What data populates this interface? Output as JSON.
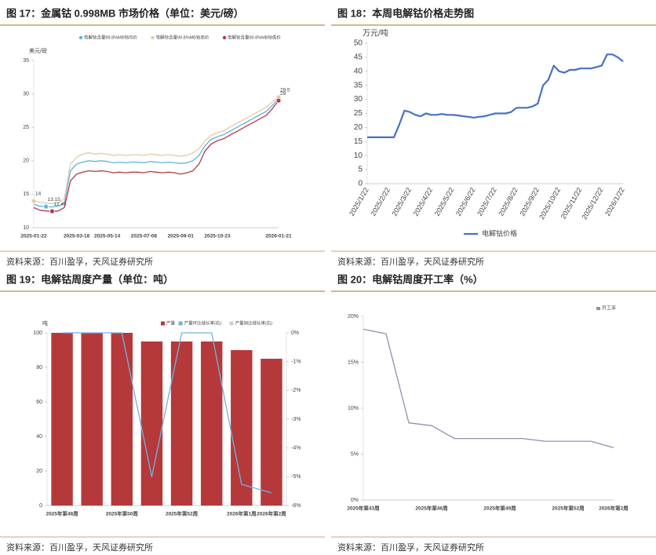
{
  "chart_data": [
    {
      "type": "line",
      "title": "图 17：金属钴 0.998MB 市场价格（单位：美元/磅）",
      "source": "资料来源：百川盈孚，天风证券研究所",
      "y_label": "美元/磅",
      "legend": "top",
      "categories": [
        "2025-01-22",
        null,
        null,
        null,
        null,
        null,
        null,
        "2025-03-18",
        null,
        null,
        null,
        null,
        "2025-05-14",
        null,
        null,
        null,
        null,
        null,
        "2025-07-08",
        null,
        null,
        null,
        null,
        null,
        "2025-09-01",
        null,
        null,
        null,
        null,
        null,
        "2025-10-23",
        null,
        null,
        null,
        null,
        null,
        null,
        null,
        null,
        null,
        "2026-01-21"
      ],
      "ylim": [
        10,
        35
      ],
      "yticks": [
        10,
        15,
        20,
        25,
        30,
        35
      ],
      "grid": false,
      "series": [
        {
          "name": "电解钴含量99.8%MB钴均价",
          "color": "#5fb3e3",
          "values": [
            13.5,
            13.2,
            13.15,
            13.1,
            13.2,
            13.7,
            18.5,
            19.5,
            19.8,
            20.0,
            19.9,
            20.0,
            19.9,
            19.7,
            19.8,
            19.7,
            19.8,
            19.8,
            19.7,
            19.9,
            19.8,
            19.7,
            19.8,
            19.7,
            19.6,
            19.7,
            20.0,
            20.8,
            22.3,
            23.2,
            23.6,
            23.9,
            24.4,
            24.9,
            25.4,
            25.9,
            26.4,
            26.9,
            27.4,
            28.3,
            29.3
          ],
          "value_labels": [
            null,
            null,
            "13.15",
            null,
            null,
            null,
            null,
            null,
            null,
            null,
            null,
            null,
            null,
            null,
            null,
            null,
            null,
            null,
            null,
            null,
            null,
            null,
            null,
            null,
            null,
            null,
            null,
            null,
            null,
            null,
            null,
            null,
            null,
            null,
            null,
            null,
            null,
            null,
            null,
            null,
            null
          ]
        },
        {
          "name": "电解钴含量99.8%MB钴高价",
          "color": "#e6c9a2",
          "values": [
            14.0,
            13.8,
            13.7,
            13.6,
            13.7,
            14.3,
            19.5,
            20.5,
            21.0,
            21.2,
            21.0,
            21.1,
            21.0,
            20.8,
            20.9,
            20.8,
            20.9,
            20.9,
            20.8,
            21.0,
            20.9,
            20.8,
            20.9,
            20.8,
            20.7,
            20.8,
            21.2,
            21.8,
            23.0,
            23.8,
            24.2,
            24.5,
            25.0,
            25.5,
            26.0,
            26.5,
            27.0,
            27.5,
            28.0,
            28.8,
            29.5
          ],
          "value_labels": [
            "14",
            null,
            null,
            null,
            null,
            null,
            null,
            null,
            null,
            null,
            null,
            null,
            null,
            null,
            null,
            null,
            null,
            null,
            null,
            null,
            null,
            null,
            null,
            null,
            null,
            null,
            null,
            null,
            null,
            null,
            null,
            null,
            null,
            null,
            null,
            null,
            null,
            null,
            null,
            null,
            "29.5"
          ]
        },
        {
          "name": "电解钴含量99.8%MB钴低价",
          "color": "#b23a48",
          "values": [
            13.0,
            12.6,
            12.5,
            12.45,
            12.5,
            13.0,
            17.0,
            18.0,
            18.3,
            18.5,
            18.4,
            18.5,
            18.4,
            18.2,
            18.3,
            18.2,
            18.3,
            18.3,
            18.2,
            18.4,
            18.3,
            18.2,
            18.3,
            18.2,
            18.0,
            18.2,
            18.5,
            19.5,
            21.5,
            22.5,
            23.0,
            23.3,
            23.8,
            24.3,
            24.8,
            25.3,
            25.8,
            26.3,
            26.8,
            27.8,
            29.0
          ],
          "value_labels": [
            null,
            null,
            null,
            "12.45",
            null,
            null,
            null,
            null,
            null,
            null,
            null,
            null,
            null,
            null,
            null,
            null,
            null,
            null,
            null,
            null,
            null,
            null,
            null,
            null,
            null,
            null,
            null,
            null,
            null,
            null,
            null,
            null,
            null,
            null,
            null,
            null,
            null,
            null,
            null,
            null,
            "29"
          ]
        }
      ]
    },
    {
      "type": "line",
      "title": "图 18：本周电解钴价格走势图",
      "source": "资料来源：百川盈孚，天风证券研究所",
      "y_label": "万元/吨",
      "legend": "bottom",
      "categories": [
        "2025/1/22",
        null,
        null,
        null,
        "2025/2/22",
        null,
        null,
        null,
        "2025/3/22",
        null,
        null,
        null,
        "2025/4/22",
        null,
        null,
        null,
        "2025/5/22",
        null,
        null,
        null,
        "2025/6/22",
        null,
        null,
        null,
        "2025/7/22",
        null,
        null,
        null,
        "2025/8/22",
        null,
        null,
        null,
        "2025/9/22",
        null,
        null,
        null,
        "2025/10/22",
        null,
        null,
        null,
        "2025/11/22",
        null,
        null,
        null,
        "2025/12/22",
        null,
        null,
        null,
        "2026/1/22"
      ],
      "ylim": [
        0,
        50
      ],
      "yticks": [
        0,
        5,
        10,
        15,
        20,
        25,
        30,
        35,
        40,
        45,
        50
      ],
      "grid": false,
      "series": [
        {
          "name": "电解钴价格",
          "color": "#4472c4",
          "values": [
            16.5,
            16.5,
            16.5,
            16.5,
            16.5,
            16.5,
            21,
            26,
            25.5,
            24.5,
            24,
            25,
            24.5,
            24.5,
            24.8,
            24.5,
            24.5,
            24.3,
            24,
            23.8,
            23.5,
            23.8,
            24,
            24.5,
            25,
            25,
            25,
            25.5,
            27,
            27,
            27,
            27.5,
            28.5,
            35,
            37,
            42,
            40,
            39.5,
            40.5,
            40.5,
            41,
            41,
            41,
            41.5,
            42,
            46,
            46,
            45,
            43.5
          ]
        }
      ]
    },
    {
      "type": "bar",
      "title": "图 19：电解钴周度产量（单位：吨）",
      "source": "资料来源：百川盈孚，天风证券研究所",
      "y_label": "吨",
      "legend": "top",
      "categories": [
        "2025年第48周",
        null,
        "2025年第50周",
        null,
        "2025年第52周",
        null,
        "2026年第1周",
        "2026年第2周"
      ],
      "ylim": [
        0,
        100
      ],
      "yticks": [
        0,
        20,
        40,
        60,
        80,
        100
      ],
      "y2lim": [
        -6,
        0
      ],
      "y2ticks": [
        {
          "value": 0,
          "label": "0%"
        },
        {
          "value": -1,
          "label": "-1%"
        },
        {
          "value": -2,
          "label": "-2%"
        },
        {
          "value": -3,
          "label": "-3%"
        },
        {
          "value": -4,
          "label": "-4%"
        },
        {
          "value": -5,
          "label": "-5%"
        },
        {
          "value": -6,
          "label": "-6%"
        }
      ],
      "grid": false,
      "series": [
        {
          "name": "产量",
          "type": "bar",
          "color": "#b5393a",
          "values": [
            100,
            100,
            100,
            95,
            95,
            95,
            90,
            85
          ]
        },
        {
          "name": "产量环比增长率(右)",
          "type": "line",
          "axis": "y2",
          "color": "#6fb3e0",
          "values": [
            0,
            0,
            0,
            -5,
            0,
            0,
            -5.26,
            -5.56
          ]
        },
        {
          "name": "产量同比增长率(右)",
          "type": "line",
          "axis": "y2",
          "color": "#d0d0d0",
          "values": [
            null,
            null,
            null,
            null,
            null,
            null,
            null,
            null
          ]
        }
      ]
    },
    {
      "type": "line",
      "title": "图 20：电解钴周度开工率（%）",
      "source": "资料来源：百川盈孚，天风证券研究所",
      "legend": "top-right",
      "categories": [
        "2025年第43周",
        null,
        null,
        "2025年第46周",
        null,
        null,
        "2025年第49周",
        null,
        null,
        "2025年第52周",
        null,
        "2026年第2周"
      ],
      "ylim": [
        0,
        20
      ],
      "yticks": [
        {
          "value": 0,
          "label": "0%"
        },
        {
          "value": 5,
          "label": "5%"
        },
        {
          "value": 10,
          "label": "10%"
        },
        {
          "value": 15,
          "label": "15%"
        },
        {
          "value": 20,
          "label": "20%"
        }
      ],
      "grid": false,
      "series": [
        {
          "name": "开工率",
          "color": "#8c90b3",
          "values": [
            18.6,
            18.1,
            8.4,
            8.1,
            6.7,
            6.7,
            6.7,
            6.7,
            6.4,
            6.4,
            6.4,
            5.7
          ]
        }
      ]
    }
  ]
}
